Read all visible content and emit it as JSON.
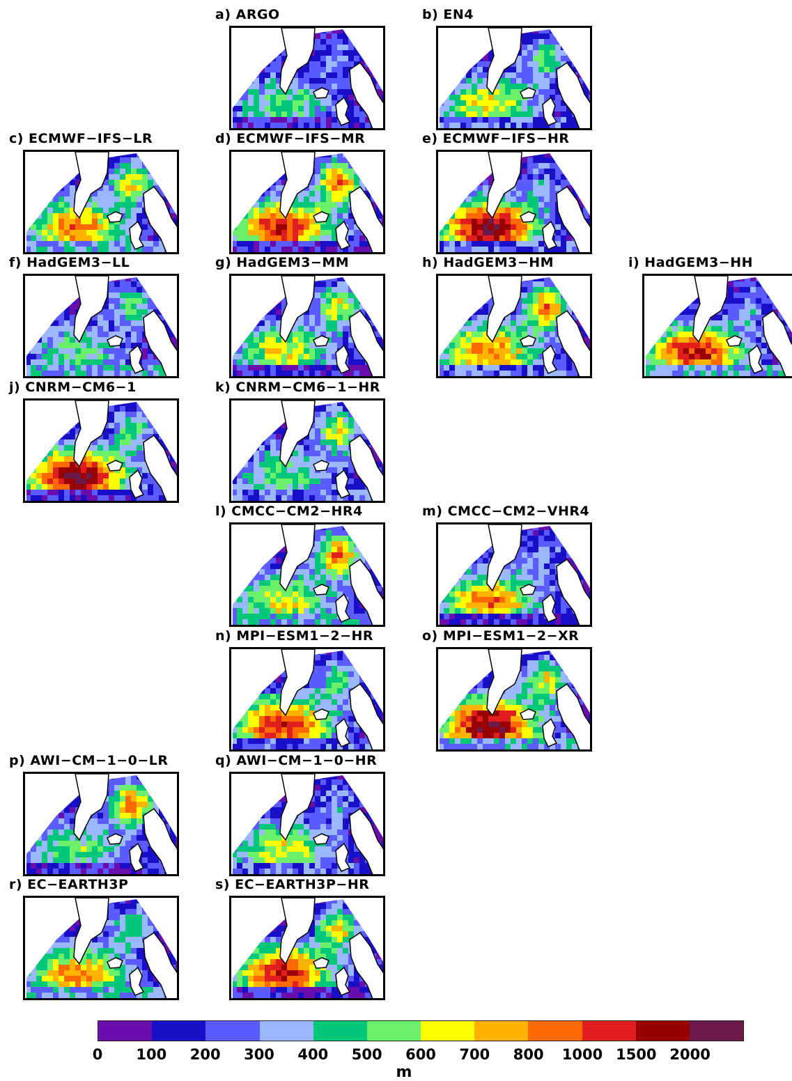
{
  "panels": [
    {
      "title": "a) ARGO"
    },
    {
      "title": "b) EN4"
    },
    {
      "title": "c) ECMWF−IFS−LR"
    },
    {
      "title": "d) ECMWF−IFS−MR"
    },
    {
      "title": "e) ECMWF−IFS−HR"
    },
    {
      "title": "f) HadGEM3−LL"
    },
    {
      "title": "g) HadGEM3−MM"
    },
    {
      "title": "h) HadGEM3−HM"
    },
    {
      "title": "i) HadGEM3−HH"
    },
    {
      "title": "j) CNRM−CM6−1"
    },
    {
      "title": "k) CNRM−CM6−1−HR"
    },
    {
      "title": "l) CMCC−CM2−HR4"
    },
    {
      "title": "m) CMCC−CM2−VHR4"
    },
    {
      "title": "n) MPI−ESM1−2−HR"
    },
    {
      "title": "o) MPI−ESM1−2−XR"
    },
    {
      "title": "p) AWI−CM−1−0−LR"
    },
    {
      "title": "q) AWI−CM−1−0−HR"
    },
    {
      "title": "r) EC−EARTH3P"
    },
    {
      "title": "s) EC−EARTH3P−HR"
    }
  ],
  "colorbar": {
    "colors": [
      "#6a0dad",
      "#1a0fc8",
      "#5a5cff",
      "#9bb8ff",
      "#00c878",
      "#6af06a",
      "#ffff00",
      "#ffb300",
      "#ff6a00",
      "#e01e1e",
      "#990000",
      "#6b1a4a"
    ],
    "ticks": [
      "0",
      "100",
      "200",
      "300",
      "400",
      "500",
      "600",
      "700",
      "800",
      "1000",
      "1500",
      "2000"
    ],
    "unit": "m"
  }
}
